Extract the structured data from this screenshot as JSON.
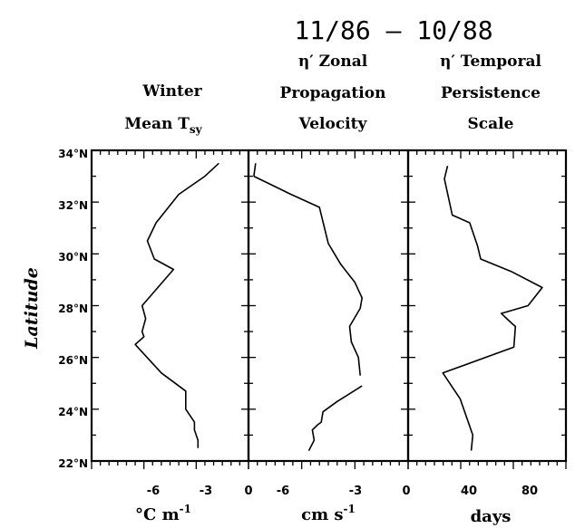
{
  "title": "11/86 – 10/88",
  "ylabel": "Latitude",
  "y_tick_labels": [
    "34°N",
    "32°N",
    "30°N",
    "28°N",
    "26°N",
    "24°N",
    "22°N"
  ],
  "panels": [
    {
      "header": [
        "Winter",
        "Mean T",
        "sy"
      ],
      "xunit": [
        "°C m",
        "-1"
      ],
      "x_tick_labels": [
        "-6",
        "-3",
        "0"
      ]
    },
    {
      "header": [
        "η′ Zonal",
        "Propagation",
        "Velocity"
      ],
      "xunit": [
        "cm s",
        "-1"
      ],
      "x_tick_labels": [
        "0",
        "-6",
        "-3",
        "0"
      ]
    },
    {
      "header": [
        "η′ Temporal",
        "Persistence",
        "Scale"
      ],
      "xunit": [
        "days",
        ""
      ],
      "x_tick_labels": [
        "0",
        "40",
        "80"
      ]
    }
  ],
  "chart_data": [
    {
      "type": "line",
      "panel": "Winter Mean Tsy",
      "xunit": "°C m^-1",
      "xlim": [
        -9,
        0
      ],
      "ylim": [
        22,
        34
      ],
      "x": [
        -1.7,
        -2.5,
        -4.0,
        -5.3,
        -5.8,
        -5.4,
        -4.3,
        -5.2,
        -6.1,
        -5.9,
        -6.1,
        -6.0,
        -6.5,
        -5.0,
        -3.6,
        -3.6,
        -3.1,
        -3.1,
        -2.9,
        -2.9
      ],
      "y": [
        33.5,
        33.0,
        32.3,
        31.2,
        30.5,
        29.8,
        29.4,
        28.7,
        28.0,
        27.5,
        27.0,
        26.8,
        26.5,
        25.4,
        24.7,
        24.0,
        23.5,
        23.2,
        22.8,
        22.5
      ]
    },
    {
      "type": "line",
      "panel": "η′ Zonal Propagation Velocity",
      "xunit": "cm s^-1",
      "xlim": [
        -9,
        0
      ],
      "ylim": [
        22,
        34
      ],
      "segments": [
        {
          "x": [
            -8.6,
            -8.7
          ],
          "y": [
            33.5,
            33.0
          ]
        },
        {
          "x": [
            -8.7,
            -6.6,
            -5.0,
            -4.5,
            -3.8,
            -3.0,
            -2.6,
            -2.7,
            -3.3,
            -3.2,
            -2.8,
            -2.7
          ],
          "y": [
            33.0,
            32.3,
            31.8,
            30.4,
            29.6,
            28.9,
            28.3,
            27.9,
            27.2,
            26.6,
            26.0,
            25.3
          ]
        },
        {
          "x": [
            -2.6,
            -4.0,
            -4.8,
            -4.9,
            -5.1,
            -5.4,
            -5.3,
            -5.6
          ],
          "y": [
            24.9,
            24.3,
            23.9,
            23.5,
            23.4,
            23.2,
            22.8,
            22.4
          ]
        }
      ]
    },
    {
      "type": "line",
      "panel": "η′ Temporal Persistence Scale",
      "xunit": "days",
      "xlim": [
        0,
        100
      ],
      "ylim": [
        22,
        34
      ],
      "x": [
        25,
        23,
        28,
        39,
        44,
        46,
        66,
        85,
        76,
        59,
        66,
        68,
        67,
        22,
        33,
        41,
        40
      ],
      "y": [
        33.4,
        32.9,
        31.5,
        31.2,
        30.3,
        29.8,
        29.3,
        28.7,
        28.0,
        27.7,
        27.3,
        27.2,
        26.4,
        25.4,
        24.4,
        23.0,
        22.4
      ]
    }
  ]
}
